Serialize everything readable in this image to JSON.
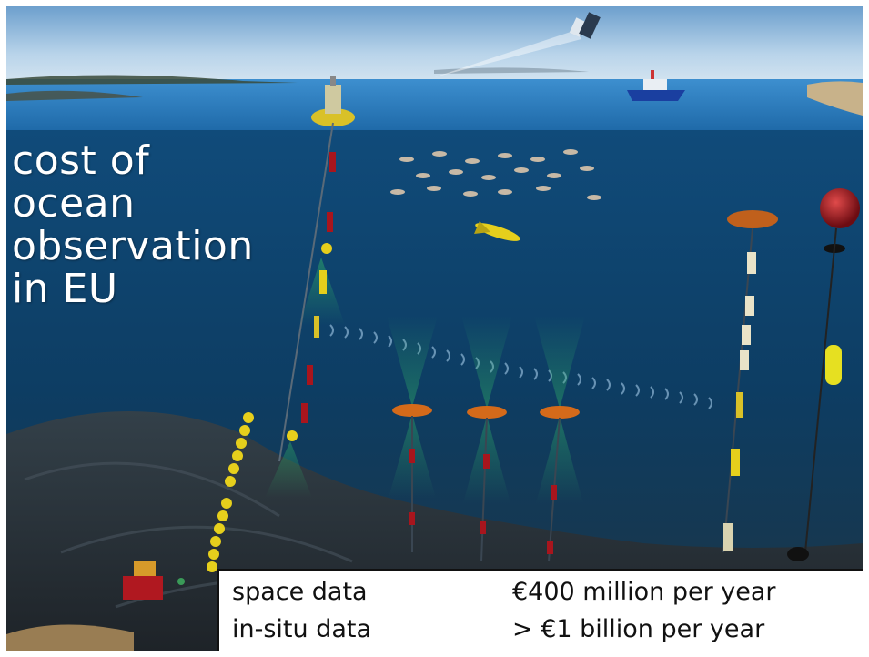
{
  "title_lines": [
    "cost of",
    "ocean",
    "observation",
    "in EU"
  ],
  "cost_table": {
    "rows": [
      {
        "label": "space data",
        "value": "€400 million per year"
      },
      {
        "label": "in-situ data",
        "value": "> €1 billion per year"
      }
    ]
  },
  "colors": {
    "sky": "#a9cbe6",
    "sea_surface": "#2f80c1",
    "deep_water": "#0e3c62",
    "seafloor": "#2b3338",
    "instrument_yellow": "#e6cf1c",
    "instrument_orange": "#d46a1a",
    "buoy_red": "#a8151d",
    "sonar_green": "#2fae68"
  }
}
